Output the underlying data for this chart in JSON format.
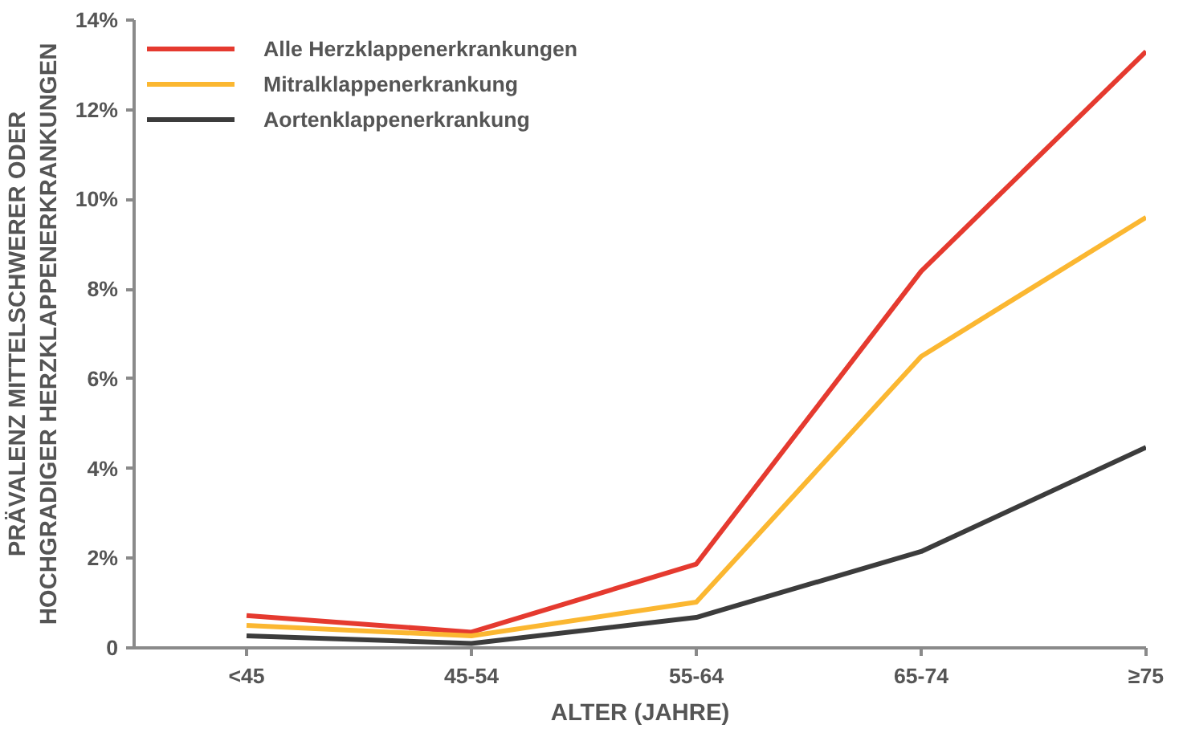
{
  "chart_data": {
    "type": "line",
    "xlabel": "ALTER (JAHRE)",
    "ylabel": "PRÄVALENZ MITTELSCHWERER ODER\nHOCHGRADIGER HERZKLAPPENERKRANKUNGEN",
    "categories": [
      "<45",
      "45-54",
      "55-64",
      "65-74",
      "≥75"
    ],
    "series": [
      {
        "name": "Alle Herzklappenerkrankungen",
        "color": "#e53a2f",
        "values": [
          0.72,
          0.35,
          1.87,
          8.4,
          13.3
        ]
      },
      {
        "name": "Mitralklappenerkrankung",
        "color": "#fbb731",
        "values": [
          0.5,
          0.27,
          1.02,
          6.5,
          9.6
        ]
      },
      {
        "name": "Aortenklappenerkrankung",
        "color": "#3c3c3c",
        "values": [
          0.27,
          0.1,
          0.68,
          2.15,
          4.47
        ]
      }
    ],
    "ylim": [
      0,
      14
    ],
    "yticks": [
      {
        "value": 0,
        "label": "0"
      },
      {
        "value": 2,
        "label": "2%"
      },
      {
        "value": 4,
        "label": "4%"
      },
      {
        "value": 6,
        "label": "6%"
      },
      {
        "value": 8,
        "label": "8%"
      },
      {
        "value": 10,
        "label": "10%"
      },
      {
        "value": 12,
        "label": "12%"
      },
      {
        "value": 14,
        "label": "14%"
      }
    ],
    "grid": false,
    "legend": "top left",
    "marker": "none",
    "line_style": "solid"
  }
}
